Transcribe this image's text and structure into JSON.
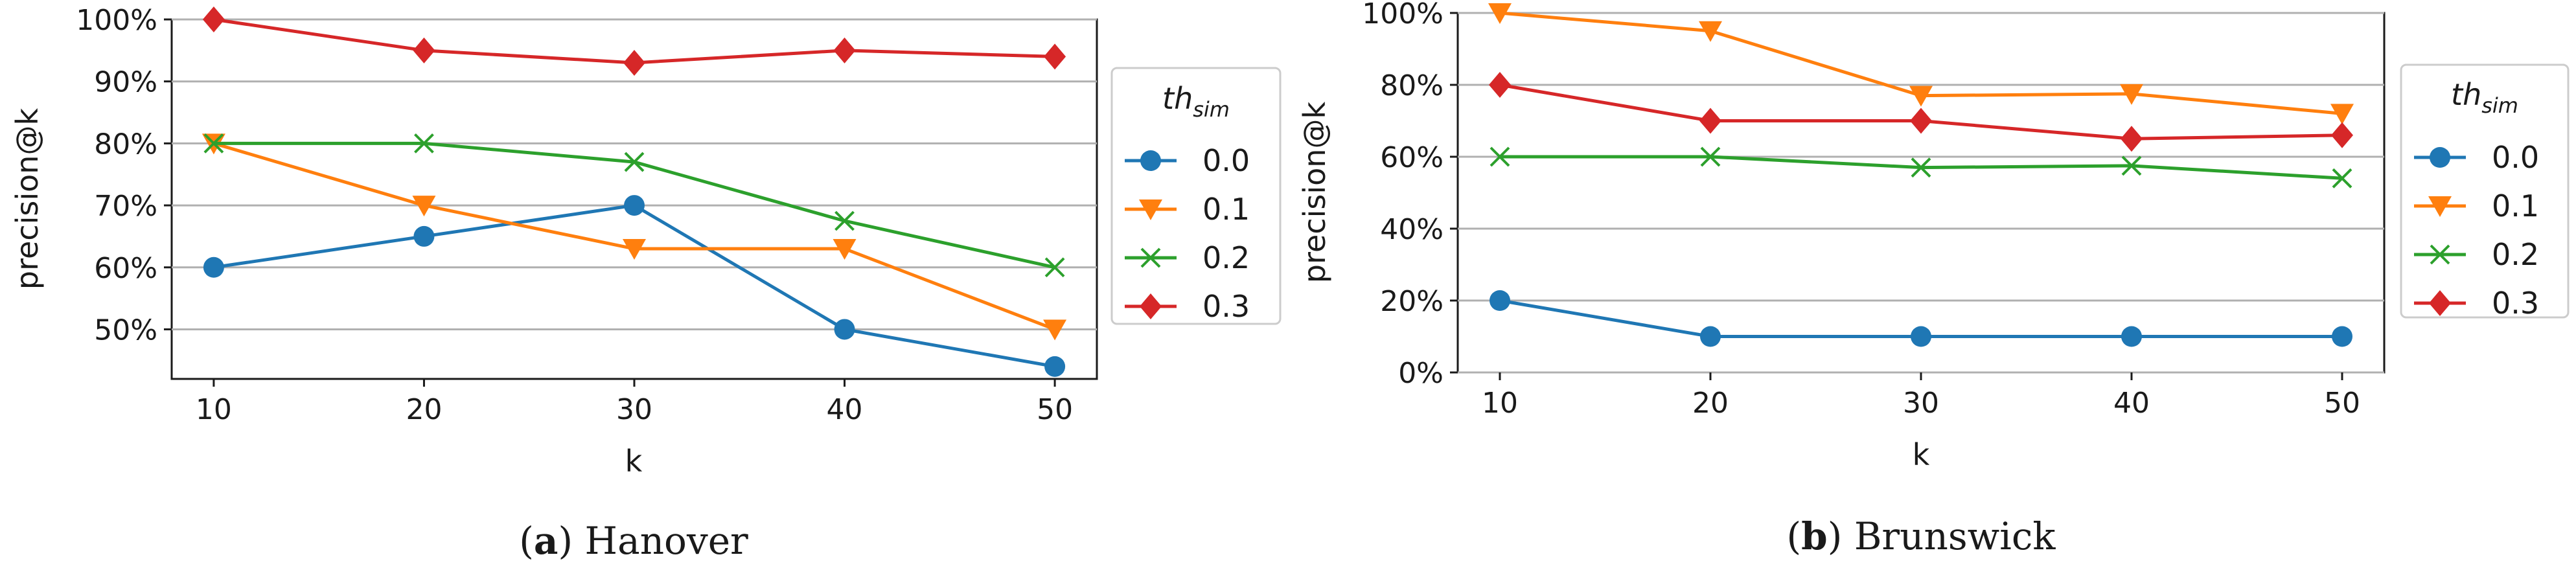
{
  "chart_data": [
    {
      "type": "line",
      "caption_letter": "a",
      "caption_name": "Hanover",
      "xlabel": "k",
      "ylabel": "precision@k",
      "x": [
        10,
        20,
        30,
        40,
        50
      ],
      "xticks": [
        "10",
        "20",
        "30",
        "40",
        "50"
      ],
      "xlim": [
        8,
        52
      ],
      "ylim": [
        42,
        100
      ],
      "yticks": [
        50,
        60,
        70,
        80,
        90,
        100
      ],
      "ytick_labels": [
        "50%",
        "60%",
        "70%",
        "80%",
        "90%",
        "100%"
      ],
      "grid": "horizontal",
      "legend_title_main": "th",
      "legend_title_sub": "sim",
      "legend_position": "right outside",
      "series": [
        {
          "name": "0.0",
          "color": "#1f77b4",
          "marker": "circle",
          "values": [
            60,
            65,
            70,
            50,
            44
          ]
        },
        {
          "name": "0.1",
          "color": "#ff7f0e",
          "marker": "triangle-down",
          "values": [
            80,
            70,
            63,
            63,
            50
          ]
        },
        {
          "name": "0.2",
          "color": "#2ca02c",
          "marker": "x",
          "values": [
            80,
            80,
            77,
            67.5,
            60
          ]
        },
        {
          "name": "0.3",
          "color": "#d62728",
          "marker": "diamond",
          "values": [
            100,
            95,
            93,
            95,
            94
          ]
        }
      ]
    },
    {
      "type": "line",
      "caption_letter": "b",
      "caption_name": "Brunswick",
      "xlabel": "k",
      "ylabel": "precision@k",
      "x": [
        10,
        20,
        30,
        40,
        50
      ],
      "xticks": [
        "10",
        "20",
        "30",
        "40",
        "50"
      ],
      "xlim": [
        8,
        52
      ],
      "ylim": [
        0,
        100
      ],
      "yticks": [
        0,
        20,
        40,
        60,
        80,
        100
      ],
      "ytick_labels": [
        "0%",
        "20%",
        "40%",
        "60%",
        "80%",
        "100%"
      ],
      "grid": "horizontal",
      "legend_title_main": "th",
      "legend_title_sub": "sim",
      "legend_position": "right outside",
      "series": [
        {
          "name": "0.0",
          "color": "#1f77b4",
          "marker": "circle",
          "values": [
            20,
            10,
            10,
            10,
            10
          ]
        },
        {
          "name": "0.1",
          "color": "#ff7f0e",
          "marker": "triangle-down",
          "values": [
            100,
            95,
            77,
            77.5,
            72
          ]
        },
        {
          "name": "0.2",
          "color": "#2ca02c",
          "marker": "x",
          "values": [
            60,
            60,
            57,
            57.5,
            54
          ]
        },
        {
          "name": "0.3",
          "color": "#d62728",
          "marker": "diamond",
          "values": [
            80,
            70,
            70,
            65,
            66
          ]
        }
      ]
    }
  ]
}
